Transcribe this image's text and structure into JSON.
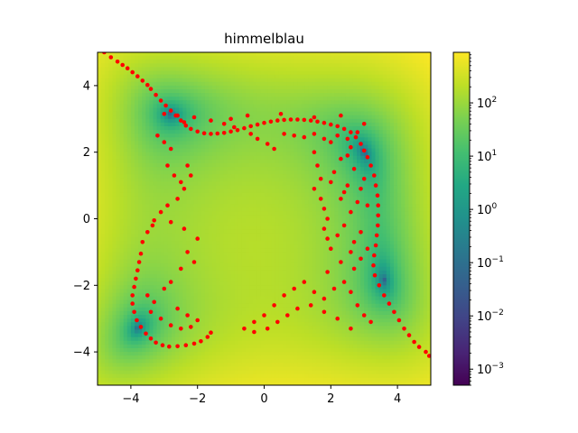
{
  "chart_data": {
    "type": "scatter",
    "title": "himmelblau",
    "xlabel": "",
    "ylabel": "",
    "xlim": [
      -5,
      5
    ],
    "ylim": [
      -5,
      5
    ],
    "xticks": [
      -4,
      -2,
      0,
      2,
      4
    ],
    "yticks": [
      -4,
      -2,
      0,
      2,
      4
    ],
    "xtick_labels": [
      "−4",
      "−2",
      "0",
      "2",
      "4"
    ],
    "ytick_labels": [
      "−4",
      "−2",
      "0",
      "2",
      "4"
    ],
    "grid": false,
    "background": {
      "type": "heatmap",
      "function": "himmelblau",
      "colormap": "viridis",
      "color_scale": "log"
    },
    "colorbar": {
      "scale": "log",
      "range": [
        0.0005,
        890
      ],
      "ticks": [
        {
          "value": 0.001,
          "base": "10",
          "exp": "−3"
        },
        {
          "value": 0.01,
          "base": "10",
          "exp": "−2"
        },
        {
          "value": 0.1,
          "base": "10",
          "exp": "−1"
        },
        {
          "value": 1,
          "base": "10",
          "exp": "0"
        },
        {
          "value": 10,
          "base": "10",
          "exp": "1"
        },
        {
          "value": 100,
          "base": "10",
          "exp": "2"
        }
      ]
    },
    "series": [
      {
        "marker_color": "#ff0000",
        "points": [
          [
            -4.8,
            5.0
          ],
          [
            -4.6,
            4.85
          ],
          [
            -4.4,
            4.72
          ],
          [
            -4.25,
            4.62
          ],
          [
            -4.1,
            4.52
          ],
          [
            -3.95,
            4.4
          ],
          [
            -3.8,
            4.28
          ],
          [
            -3.65,
            4.15
          ],
          [
            -3.5,
            4.02
          ],
          [
            -3.4,
            3.9
          ],
          [
            -3.25,
            3.72
          ],
          [
            -3.1,
            3.55
          ],
          [
            -2.95,
            3.4
          ],
          [
            -2.8,
            3.25
          ],
          [
            -2.65,
            3.1
          ],
          [
            -2.5,
            2.95
          ],
          [
            -2.35,
            2.8
          ],
          [
            -2.2,
            2.7
          ],
          [
            -2.0,
            2.62
          ],
          [
            -1.8,
            2.57
          ],
          [
            -1.6,
            2.55
          ],
          [
            -1.4,
            2.56
          ],
          [
            -1.2,
            2.58
          ],
          [
            -1.0,
            2.62
          ],
          [
            -0.8,
            2.66
          ],
          [
            -0.6,
            2.72
          ],
          [
            -0.4,
            2.78
          ],
          [
            -0.2,
            2.83
          ],
          [
            0.0,
            2.88
          ],
          [
            0.2,
            2.92
          ],
          [
            0.4,
            2.95
          ],
          [
            0.6,
            2.97
          ],
          [
            0.8,
            2.98
          ],
          [
            1.0,
            2.98
          ],
          [
            1.2,
            2.97
          ],
          [
            1.4,
            2.95
          ],
          [
            1.6,
            2.92
          ],
          [
            1.8,
            2.88
          ],
          [
            2.0,
            2.83
          ],
          [
            2.2,
            2.78
          ],
          [
            2.4,
            2.7
          ],
          [
            2.6,
            2.6
          ],
          [
            2.75,
            2.45
          ],
          [
            2.9,
            2.25
          ],
          [
            3.0,
            2.05
          ],
          [
            3.1,
            1.85
          ],
          [
            3.2,
            1.6
          ],
          [
            3.3,
            1.3
          ],
          [
            3.35,
            1.0
          ],
          [
            3.4,
            0.7
          ],
          [
            3.42,
            0.4
          ],
          [
            3.42,
            0.1
          ],
          [
            3.41,
            -0.2
          ],
          [
            3.38,
            -0.5
          ],
          [
            3.35,
            -0.8
          ],
          [
            3.3,
            -1.1
          ],
          [
            3.28,
            -1.4
          ],
          [
            3.32,
            -1.7
          ],
          [
            3.45,
            -2.0
          ],
          [
            3.6,
            -2.3
          ],
          [
            3.75,
            -2.55
          ],
          [
            3.9,
            -2.8
          ],
          [
            4.05,
            -3.05
          ],
          [
            4.2,
            -3.3
          ],
          [
            4.35,
            -3.5
          ],
          [
            4.5,
            -3.7
          ],
          [
            4.65,
            -3.85
          ],
          [
            4.85,
            -4.0
          ],
          [
            4.95,
            -4.12
          ],
          [
            -3.7,
            -1.05
          ],
          [
            -3.75,
            -1.3
          ],
          [
            -3.8,
            -1.55
          ],
          [
            -3.85,
            -1.8
          ],
          [
            -3.9,
            -2.05
          ],
          [
            -3.95,
            -2.3
          ],
          [
            -3.95,
            -2.55
          ],
          [
            -3.9,
            -2.8
          ],
          [
            -3.82,
            -3.05
          ],
          [
            -3.7,
            -3.25
          ],
          [
            -3.55,
            -3.45
          ],
          [
            -3.4,
            -3.6
          ],
          [
            -3.25,
            -3.72
          ],
          [
            -3.05,
            -3.8
          ],
          [
            -2.85,
            -3.84
          ],
          [
            -2.6,
            -3.83
          ],
          [
            -2.35,
            -3.8
          ],
          [
            -2.1,
            -3.75
          ],
          [
            -1.9,
            -3.68
          ],
          [
            -1.7,
            -3.55
          ],
          [
            -1.6,
            -3.42
          ],
          [
            -3.65,
            -0.7
          ],
          [
            -3.5,
            -0.4
          ],
          [
            -3.35,
            -0.2
          ],
          [
            -3.3,
            -0.05
          ],
          [
            -3.0,
            3.15
          ],
          [
            -2.6,
            3.1
          ],
          [
            -2.4,
            2.9
          ],
          [
            -2.1,
            3.05
          ],
          [
            -1.6,
            2.95
          ],
          [
            -1.2,
            2.85
          ],
          [
            -0.9,
            2.75
          ],
          [
            -0.4,
            2.55
          ],
          [
            -0.2,
            2.4
          ],
          [
            0.1,
            2.25
          ],
          [
            0.3,
            2.1
          ],
          [
            0.6,
            2.55
          ],
          [
            0.9,
            2.5
          ],
          [
            1.2,
            2.45
          ],
          [
            1.5,
            2.55
          ],
          [
            1.8,
            2.4
          ],
          [
            2.0,
            2.3
          ],
          [
            2.2,
            2.5
          ],
          [
            2.5,
            2.4
          ],
          [
            2.6,
            2.15
          ],
          [
            2.8,
            2.6
          ],
          [
            3.0,
            2.85
          ],
          [
            2.3,
            3.1
          ],
          [
            1.5,
            3.05
          ],
          [
            0.5,
            3.15
          ],
          [
            -0.5,
            3.1
          ],
          [
            -1.0,
            3.0
          ],
          [
            -3.2,
            2.5
          ],
          [
            -3.0,
            2.3
          ],
          [
            -2.8,
            2.1
          ],
          [
            -2.9,
            1.6
          ],
          [
            -2.7,
            1.3
          ],
          [
            -2.5,
            1.1
          ],
          [
            -2.3,
            1.6
          ],
          [
            -2.2,
            1.3
          ],
          [
            -2.4,
            0.9
          ],
          [
            -2.6,
            0.6
          ],
          [
            -2.9,
            0.4
          ],
          [
            -3.1,
            0.2
          ],
          [
            -2.8,
            -0.1
          ],
          [
            -2.4,
            -0.3
          ],
          [
            -2.0,
            -0.6
          ],
          [
            -2.3,
            -1.0
          ],
          [
            -2.1,
            -1.3
          ],
          [
            -2.5,
            -1.5
          ],
          [
            -2.8,
            -1.9
          ],
          [
            -3.0,
            -2.1
          ],
          [
            -3.3,
            -2.5
          ],
          [
            -3.5,
            -2.3
          ],
          [
            -3.4,
            -2.8
          ],
          [
            -3.1,
            -3.0
          ],
          [
            -2.8,
            -3.2
          ],
          [
            -2.5,
            -3.3
          ],
          [
            -2.2,
            -3.25
          ],
          [
            -2.0,
            -3.05
          ],
          [
            -2.3,
            -2.9
          ],
          [
            -2.6,
            -2.7
          ],
          [
            -0.6,
            -3.3
          ],
          [
            -0.3,
            -3.1
          ],
          [
            0.0,
            -2.9
          ],
          [
            0.3,
            -2.6
          ],
          [
            0.6,
            -2.3
          ],
          [
            0.9,
            -2.1
          ],
          [
            1.2,
            -1.9
          ],
          [
            1.5,
            -2.2
          ],
          [
            1.8,
            -2.4
          ],
          [
            2.1,
            -2.1
          ],
          [
            2.4,
            -1.9
          ],
          [
            2.6,
            -2.2
          ],
          [
            2.8,
            -2.6
          ],
          [
            3.0,
            -2.9
          ],
          [
            3.2,
            -3.1
          ],
          [
            2.6,
            -3.3
          ],
          [
            2.2,
            -3.0
          ],
          [
            1.8,
            -2.8
          ],
          [
            1.4,
            -2.6
          ],
          [
            1.0,
            -2.7
          ],
          [
            0.7,
            -2.9
          ],
          [
            0.4,
            -3.1
          ],
          [
            0.1,
            -3.3
          ],
          [
            -0.3,
            -3.4
          ],
          [
            1.9,
            -1.6
          ],
          [
            2.3,
            -1.3
          ],
          [
            2.7,
            -1.5
          ],
          [
            2.9,
            -1.2
          ],
          [
            1.5,
            2.0
          ],
          [
            1.6,
            1.6
          ],
          [
            1.7,
            1.2
          ],
          [
            1.5,
            0.9
          ],
          [
            1.7,
            0.6
          ],
          [
            1.8,
            0.3
          ],
          [
            1.9,
            0.0
          ],
          [
            1.8,
            -0.3
          ],
          [
            1.9,
            -0.6
          ],
          [
            2.0,
            -0.9
          ],
          [
            2.2,
            -0.5
          ],
          [
            2.4,
            -0.2
          ],
          [
            2.6,
            0.2
          ],
          [
            2.8,
            0.5
          ],
          [
            2.9,
            0.9
          ],
          [
            3.0,
            1.2
          ],
          [
            2.7,
            1.5
          ],
          [
            2.5,
            1.0
          ],
          [
            2.3,
            0.6
          ],
          [
            2.1,
            1.4
          ],
          [
            2.3,
            1.8
          ],
          [
            2.5,
            1.9
          ],
          [
            2.7,
            -0.7
          ],
          [
            2.9,
            -0.4
          ],
          [
            3.1,
            -0.9
          ],
          [
            3.1,
            0.4
          ],
          [
            2.4,
            0.8
          ],
          [
            2.0,
            1.1
          ],
          [
            2.6,
            -1.0
          ]
        ]
      }
    ]
  }
}
